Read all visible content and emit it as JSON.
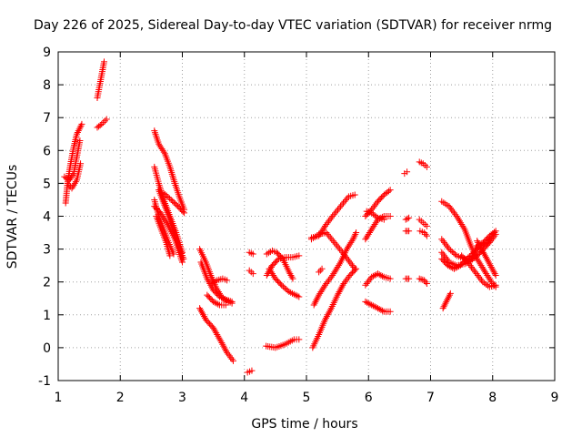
{
  "chart_data": {
    "type": "scatter",
    "title": "Day 226 of 2025, Sidereal Day-to-day VTEC variation (SDTVAR) for receiver nrmg",
    "xlabel": "GPS time / hours",
    "ylabel": "SDTVAR / TECUs",
    "xlim": [
      1,
      9
    ],
    "ylim": [
      -1,
      9
    ],
    "xticks": [
      1,
      2,
      3,
      4,
      5,
      6,
      7,
      8,
      9
    ],
    "yticks": [
      -1,
      0,
      1,
      2,
      3,
      4,
      5,
      6,
      7,
      8,
      9
    ],
    "grid": true,
    "marker": "plus",
    "color": "#ff0000",
    "arcs": [
      [
        [
          1.12,
          4.4
        ],
        [
          1.15,
          5.0
        ],
        [
          1.2,
          5.6
        ],
        [
          1.25,
          6.1
        ],
        [
          1.3,
          6.5
        ],
        [
          1.38,
          6.8
        ]
      ],
      [
        [
          1.1,
          5.2
        ],
        [
          1.18,
          5.1
        ],
        [
          1.25,
          5.3
        ],
        [
          1.3,
          5.8
        ],
        [
          1.35,
          6.3
        ]
      ],
      [
        [
          1.15,
          5.0
        ],
        [
          1.22,
          4.85
        ],
        [
          1.3,
          5.1
        ],
        [
          1.36,
          5.6
        ]
      ],
      [
        [
          1.63,
          7.6
        ],
        [
          1.68,
          8.1
        ],
        [
          1.74,
          8.7
        ]
      ],
      [
        [
          1.63,
          6.7
        ],
        [
          1.7,
          6.8
        ],
        [
          1.78,
          6.95
        ]
      ],
      [
        [
          2.55,
          6.6
        ],
        [
          2.62,
          6.2
        ],
        [
          2.72,
          5.9
        ],
        [
          2.8,
          5.5
        ],
        [
          2.88,
          5.0
        ],
        [
          2.95,
          4.6
        ],
        [
          3.03,
          4.2
        ]
      ],
      [
        [
          2.55,
          5.5
        ],
        [
          2.62,
          5.0
        ],
        [
          2.7,
          4.5
        ],
        [
          2.8,
          4.0
        ],
        [
          2.9,
          3.5
        ],
        [
          3.0,
          2.9
        ]
      ],
      [
        [
          2.55,
          4.5
        ],
        [
          2.62,
          4.0
        ],
        [
          2.7,
          3.6
        ],
        [
          2.78,
          3.2
        ],
        [
          2.86,
          2.85
        ]
      ],
      [
        [
          2.55,
          4.3
        ],
        [
          2.65,
          4.1
        ],
        [
          2.75,
          3.8
        ],
        [
          2.88,
          3.3
        ],
        [
          3.0,
          2.6
        ]
      ],
      [
        [
          2.62,
          4.8
        ],
        [
          2.7,
          4.4
        ],
        [
          2.8,
          3.9
        ],
        [
          2.9,
          3.3
        ],
        [
          3.02,
          2.7
        ]
      ],
      [
        [
          2.58,
          4.0
        ],
        [
          2.66,
          3.6
        ],
        [
          2.74,
          3.2
        ],
        [
          2.8,
          2.8
        ]
      ],
      [
        [
          2.7,
          4.7
        ],
        [
          2.82,
          4.5
        ],
        [
          2.93,
          4.3
        ],
        [
          3.03,
          4.1
        ]
      ],
      [
        [
          3.28,
          1.2
        ],
        [
          3.38,
          0.85
        ],
        [
          3.5,
          0.6
        ],
        [
          3.62,
          0.2
        ],
        [
          3.72,
          -0.15
        ],
        [
          3.82,
          -0.4
        ]
      ],
      [
        [
          3.28,
          3.0
        ],
        [
          3.38,
          2.6
        ],
        [
          3.46,
          2.2
        ],
        [
          3.55,
          1.8
        ],
        [
          3.65,
          1.5
        ],
        [
          3.8,
          1.35
        ]
      ],
      [
        [
          3.3,
          2.6
        ],
        [
          3.4,
          2.1
        ],
        [
          3.5,
          1.75
        ],
        [
          3.6,
          1.55
        ],
        [
          3.72,
          1.45
        ],
        [
          3.8,
          1.4
        ]
      ],
      [
        [
          3.48,
          1.95
        ],
        [
          3.56,
          2.05
        ],
        [
          3.65,
          2.1
        ],
        [
          3.72,
          2.05
        ]
      ],
      [
        [
          3.4,
          1.6
        ],
        [
          3.5,
          1.4
        ],
        [
          3.6,
          1.3
        ],
        [
          3.7,
          1.3
        ]
      ],
      [
        [
          4.05,
          -0.75
        ],
        [
          4.12,
          -0.7
        ]
      ],
      [
        [
          4.08,
          2.9
        ],
        [
          4.14,
          2.85
        ]
      ],
      [
        [
          4.08,
          2.35
        ],
        [
          4.14,
          2.25
        ]
      ],
      [
        [
          4.35,
          0.05
        ],
        [
          4.5,
          0.0
        ],
        [
          4.65,
          0.1
        ],
        [
          4.8,
          0.25
        ],
        [
          4.88,
          0.25
        ]
      ],
      [
        [
          4.36,
          2.85
        ],
        [
          4.45,
          2.95
        ],
        [
          4.52,
          2.9
        ],
        [
          4.62,
          2.7
        ],
        [
          4.72,
          2.3
        ],
        [
          4.78,
          2.1
        ]
      ],
      [
        [
          4.36,
          2.2
        ],
        [
          4.45,
          2.5
        ],
        [
          4.55,
          2.7
        ],
        [
          4.65,
          2.75
        ],
        [
          4.78,
          2.75
        ],
        [
          4.88,
          2.8
        ]
      ],
      [
        [
          4.4,
          2.4
        ],
        [
          4.5,
          2.1
        ],
        [
          4.6,
          1.9
        ],
        [
          4.72,
          1.7
        ],
        [
          4.88,
          1.55
        ]
      ],
      [
        [
          5.08,
          3.35
        ],
        [
          5.2,
          3.4
        ],
        [
          5.3,
          3.7
        ],
        [
          5.42,
          4.0
        ],
        [
          5.55,
          4.3
        ],
        [
          5.68,
          4.6
        ],
        [
          5.78,
          4.65
        ]
      ],
      [
        [
          5.08,
          3.3
        ],
        [
          5.2,
          3.45
        ],
        [
          5.32,
          3.5
        ],
        [
          5.45,
          3.2
        ],
        [
          5.58,
          2.9
        ],
        [
          5.68,
          2.65
        ],
        [
          5.78,
          2.4
        ]
      ],
      [
        [
          5.1,
          0.0
        ],
        [
          5.2,
          0.4
        ],
        [
          5.3,
          0.85
        ],
        [
          5.4,
          1.2
        ],
        [
          5.5,
          1.6
        ],
        [
          5.6,
          1.95
        ],
        [
          5.7,
          2.2
        ],
        [
          5.8,
          2.4
        ]
      ],
      [
        [
          5.12,
          1.3
        ],
        [
          5.2,
          1.6
        ],
        [
          5.3,
          1.9
        ],
        [
          5.42,
          2.2
        ],
        [
          5.55,
          2.6
        ],
        [
          5.65,
          3.0
        ],
        [
          5.75,
          3.3
        ],
        [
          5.8,
          3.5
        ]
      ],
      [
        [
          5.2,
          2.3
        ],
        [
          5.25,
          2.4
        ]
      ],
      [
        [
          5.95,
          3.3
        ],
        [
          6.05,
          3.6
        ],
        [
          6.15,
          3.9
        ],
        [
          6.25,
          4.0
        ],
        [
          6.35,
          4.0
        ]
      ],
      [
        [
          5.95,
          4.0
        ],
        [
          6.05,
          4.2
        ],
        [
          6.15,
          4.45
        ],
        [
          6.25,
          4.65
        ],
        [
          6.35,
          4.8
        ]
      ],
      [
        [
          5.97,
          4.15
        ],
        [
          6.05,
          4.1
        ],
        [
          6.15,
          3.95
        ],
        [
          6.25,
          3.9
        ]
      ],
      [
        [
          5.95,
          1.9
        ],
        [
          6.05,
          2.15
        ],
        [
          6.15,
          2.25
        ],
        [
          6.25,
          2.15
        ],
        [
          6.35,
          2.1
        ]
      ],
      [
        [
          5.95,
          1.4
        ],
        [
          6.05,
          1.3
        ],
        [
          6.15,
          1.2
        ],
        [
          6.25,
          1.1
        ],
        [
          6.35,
          1.1
        ]
      ],
      [
        [
          6.58,
          5.3
        ],
        [
          6.62,
          5.35
        ]
      ],
      [
        [
          6.6,
          3.9
        ],
        [
          6.65,
          3.95
        ]
      ],
      [
        [
          6.6,
          3.55
        ],
        [
          6.65,
          3.55
        ]
      ],
      [
        [
          6.6,
          2.1
        ],
        [
          6.65,
          2.1
        ]
      ],
      [
        [
          6.82,
          5.65
        ],
        [
          6.88,
          5.6
        ],
        [
          6.94,
          5.5
        ]
      ],
      [
        [
          6.82,
          3.9
        ],
        [
          6.88,
          3.8
        ],
        [
          6.94,
          3.7
        ]
      ],
      [
        [
          6.83,
          3.55
        ],
        [
          6.9,
          3.5
        ],
        [
          6.94,
          3.4
        ]
      ],
      [
        [
          6.82,
          2.1
        ],
        [
          6.9,
          2.05
        ],
        [
          6.94,
          1.95
        ]
      ],
      [
        [
          7.18,
          4.45
        ],
        [
          7.3,
          4.3
        ],
        [
          7.42,
          4.0
        ],
        [
          7.55,
          3.6
        ],
        [
          7.65,
          3.1
        ],
        [
          7.75,
          2.7
        ],
        [
          7.88,
          2.3
        ],
        [
          7.98,
          2.0
        ],
        [
          8.05,
          1.85
        ]
      ],
      [
        [
          7.18,
          3.3
        ],
        [
          7.3,
          3.0
        ],
        [
          7.42,
          2.8
        ],
        [
          7.55,
          2.7
        ],
        [
          7.65,
          2.65
        ],
        [
          7.75,
          2.8
        ],
        [
          7.85,
          3.0
        ],
        [
          7.95,
          3.2
        ],
        [
          8.05,
          3.45
        ]
      ],
      [
        [
          7.18,
          2.9
        ],
        [
          7.3,
          2.6
        ],
        [
          7.42,
          2.5
        ],
        [
          7.55,
          2.55
        ],
        [
          7.65,
          2.65
        ],
        [
          7.75,
          3.1
        ],
        [
          7.85,
          3.2
        ],
        [
          7.95,
          3.4
        ],
        [
          8.05,
          3.55
        ]
      ],
      [
        [
          7.18,
          2.7
        ],
        [
          7.28,
          2.5
        ],
        [
          7.38,
          2.4
        ],
        [
          7.48,
          2.5
        ],
        [
          7.58,
          2.7
        ],
        [
          7.7,
          2.9
        ],
        [
          7.8,
          3.1
        ],
        [
          7.92,
          3.2
        ],
        [
          8.03,
          3.5
        ]
      ],
      [
        [
          7.2,
          1.2
        ],
        [
          7.28,
          1.5
        ],
        [
          7.32,
          1.65
        ]
      ],
      [
        [
          7.5,
          2.8
        ],
        [
          7.6,
          2.6
        ],
        [
          7.72,
          2.3
        ],
        [
          7.84,
          2.0
        ],
        [
          7.95,
          1.85
        ],
        [
          8.05,
          1.9
        ]
      ],
      [
        [
          7.75,
          3.25
        ],
        [
          7.85,
          2.9
        ],
        [
          7.95,
          2.55
        ],
        [
          8.05,
          2.2
        ]
      ]
    ]
  }
}
